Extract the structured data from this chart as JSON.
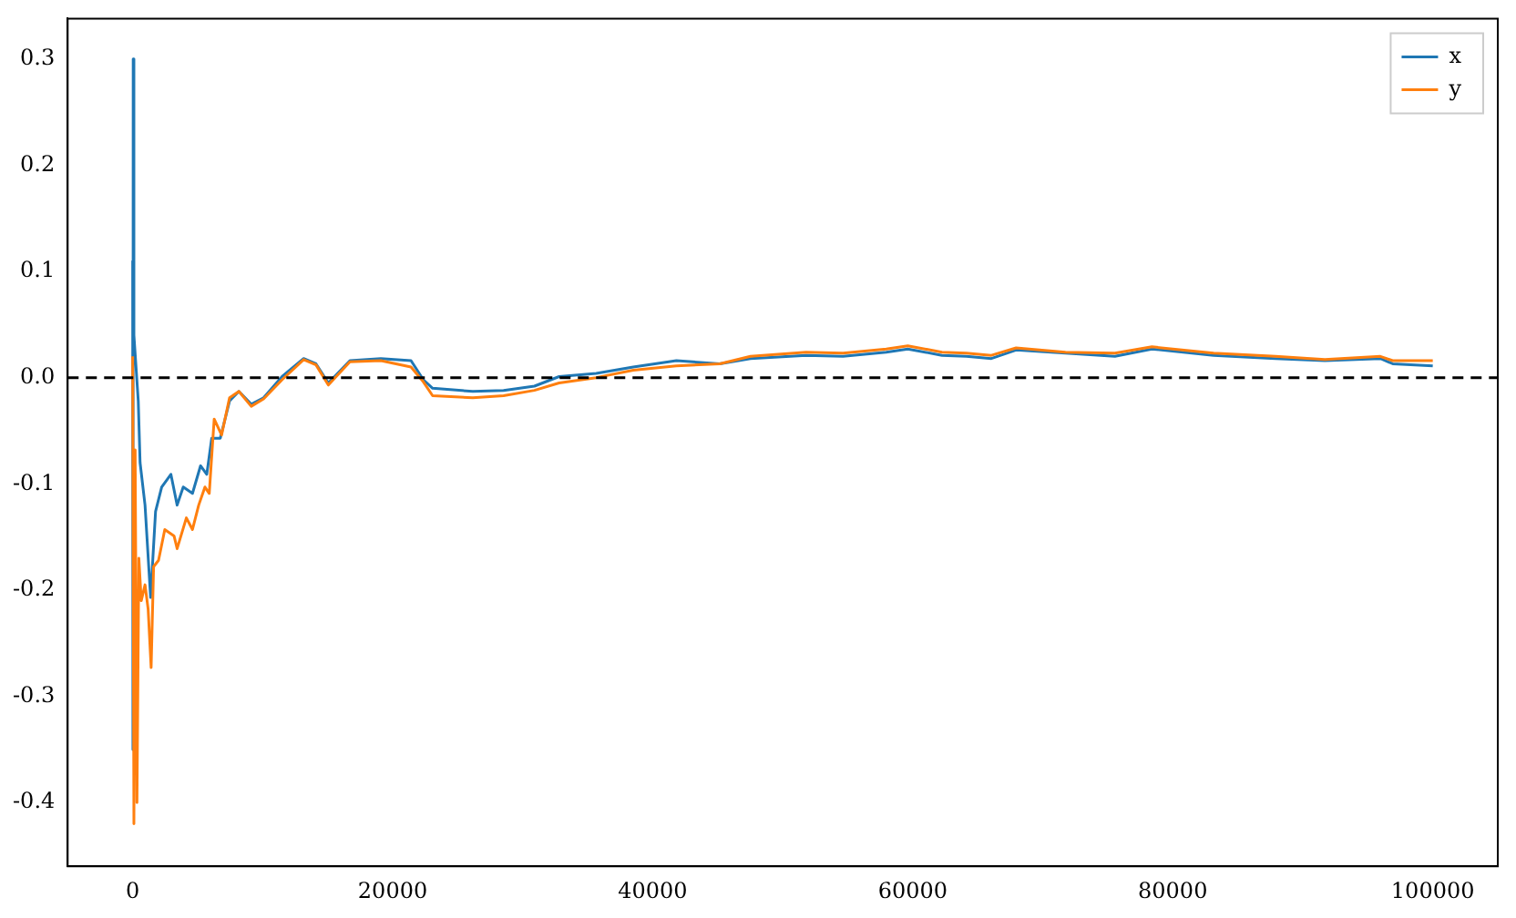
{
  "chart_data": {
    "type": "line",
    "legend": "top right",
    "grid": false,
    "xlim": [
      -5000,
      105000
    ],
    "ylim": [
      -0.46,
      0.338
    ],
    "xticks": [
      0,
      20000,
      40000,
      60000,
      80000,
      100000
    ],
    "yticks": [
      -0.4,
      -0.3,
      -0.2,
      -0.1,
      {
        "value": 0,
        "label": "0.0"
      },
      0.1,
      0.2,
      0.3
    ],
    "ref_lines": [
      {
        "axis": "y",
        "value": 0,
        "color": "#000000",
        "line_style": "dashed"
      }
    ],
    "series": [
      {
        "name": "x",
        "color": "#1f77b4",
        "x": [
          0,
          20,
          40,
          95,
          430,
          570,
          950,
          1380,
          1760,
          2230,
          2940,
          3420,
          3890,
          4600,
          5220,
          5700,
          6080,
          6740,
          7450,
          8170,
          9120,
          10070,
          11490,
          13150,
          14100,
          15050,
          16710,
          19090,
          21410,
          22360,
          23070,
          26160,
          28530,
          30900,
          32800,
          35650,
          38500,
          41820,
          45150,
          47520,
          51790,
          54640,
          57960,
          59620,
          62250,
          64130,
          66050,
          67950,
          71750,
          75550,
          78400,
          83150,
          87900,
          91700,
          95970,
          96920,
          100000
        ],
        "values": [
          0.11,
          -0.35,
          0.3,
          0.04,
          -0.022,
          -0.08,
          -0.12,
          -0.207,
          -0.126,
          -0.103,
          -0.091,
          -0.12,
          -0.103,
          -0.109,
          -0.083,
          -0.091,
          -0.057,
          -0.057,
          -0.022,
          -0.013,
          -0.025,
          -0.019,
          0.001,
          0.018,
          0.013,
          -0.005,
          0.016,
          0.018,
          0.016,
          -0.002,
          -0.01,
          -0.013,
          -0.012,
          -0.008,
          0.001,
          0.004,
          0.01,
          0.016,
          0.013,
          0.018,
          0.021,
          0.02,
          0.024,
          0.027,
          0.021,
          0.02,
          0.018,
          0.026,
          0.023,
          0.02,
          0.027,
          0.021,
          0.018,
          0.016,
          0.018,
          0.013,
          0.011
        ]
      },
      {
        "name": "y",
        "color": "#ff7f0e",
        "x": [
          0,
          95,
          190,
          330,
          475,
          660,
          950,
          1190,
          1420,
          1610,
          1990,
          2470,
          3180,
          3420,
          4130,
          4600,
          5080,
          5560,
          5890,
          6270,
          6840,
          7450,
          8170,
          9120,
          10070,
          11490,
          13150,
          14100,
          15050,
          16710,
          19090,
          21410,
          22360,
          23070,
          26160,
          28530,
          30900,
          32800,
          35650,
          38500,
          41820,
          45150,
          47520,
          51790,
          54640,
          57960,
          59620,
          62250,
          64130,
          66050,
          67950,
          71750,
          75550,
          78400,
          83150,
          87900,
          91700,
          95970,
          96920,
          100000
        ],
        "values": [
          0.02,
          -0.42,
          -0.068,
          -0.4,
          -0.17,
          -0.21,
          -0.195,
          -0.218,
          -0.273,
          -0.178,
          -0.172,
          -0.143,
          -0.149,
          -0.161,
          -0.132,
          -0.143,
          -0.12,
          -0.103,
          -0.109,
          -0.039,
          -0.054,
          -0.019,
          -0.013,
          -0.027,
          -0.02,
          -0.002,
          0.017,
          0.012,
          -0.007,
          0.015,
          0.016,
          0.01,
          -0.004,
          -0.017,
          -0.019,
          -0.017,
          -0.012,
          -0.005,
          0.0,
          0.007,
          0.011,
          0.013,
          0.02,
          0.024,
          0.023,
          0.027,
          0.03,
          0.024,
          0.023,
          0.021,
          0.028,
          0.024,
          0.023,
          0.029,
          0.023,
          0.02,
          0.017,
          0.02,
          0.016,
          0.016
        ]
      }
    ]
  }
}
